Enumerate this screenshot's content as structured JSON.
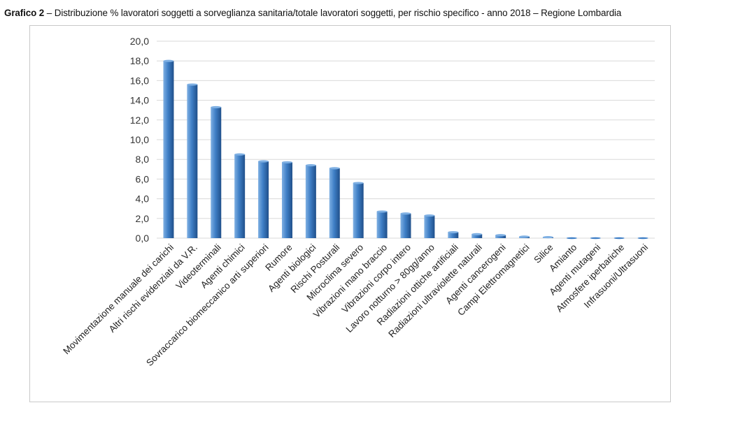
{
  "heading": {
    "prefix": "Grafico 2",
    "text": " – Distribuzione % lavoratori soggetti a sorveglianza sanitaria/totale lavoratori soggetti, per rischio specifico - anno 2018 – Regione Lombardia"
  },
  "colors": {
    "bar_light": "#7fb0e3",
    "bar_mid": "#3f7fc6",
    "bar_dark": "#1f4f8a",
    "grid": "#d9d9d9"
  },
  "chart_data": {
    "type": "bar",
    "title": "Grafico 2 – Distribuzione % lavoratori soggetti a sorveglianza sanitaria/totale lavoratori soggetti, per rischio specifico - anno 2018 – Regione Lombardia",
    "xlabel": "",
    "ylabel": "",
    "ylim": [
      0,
      20
    ],
    "yticks": [
      "0,0",
      "2,0",
      "4,0",
      "6,0",
      "8,0",
      "10,0",
      "12,0",
      "14,0",
      "16,0",
      "18,0",
      "20,0"
    ],
    "grid": true,
    "legend": "none",
    "categories": [
      "Movimentazione manuale dei carichi",
      "Altri rischi evidenziati da V.R.",
      "Videoterminali",
      "Agenti chimici",
      "Sovraccarico biomeccanico arti superiori",
      "Rumore",
      "Agenti biologici",
      "Rischi Posturali",
      "Microclima severo",
      "Vibrazioni mano braccio",
      "Vibrazioni corpo intero",
      "Lavoro notturno > 80gg/anno",
      "Radiazioni ottiche artificiali",
      "Radiazioni ultraviolette naturali",
      "Agenti cancerogeni",
      "Campi Elettromagnetici",
      "Silice",
      "Amianto",
      "Agenti mutageni",
      "Atmosfere iperbariche",
      "Infrasuoni/Ultrasuoni"
    ],
    "values": [
      18.0,
      15.6,
      13.3,
      8.5,
      7.8,
      7.7,
      7.4,
      7.1,
      5.6,
      2.7,
      2.5,
      2.3,
      0.6,
      0.4,
      0.3,
      0.15,
      0.1,
      0.02,
      0.0,
      0.0,
      0.0
    ]
  }
}
